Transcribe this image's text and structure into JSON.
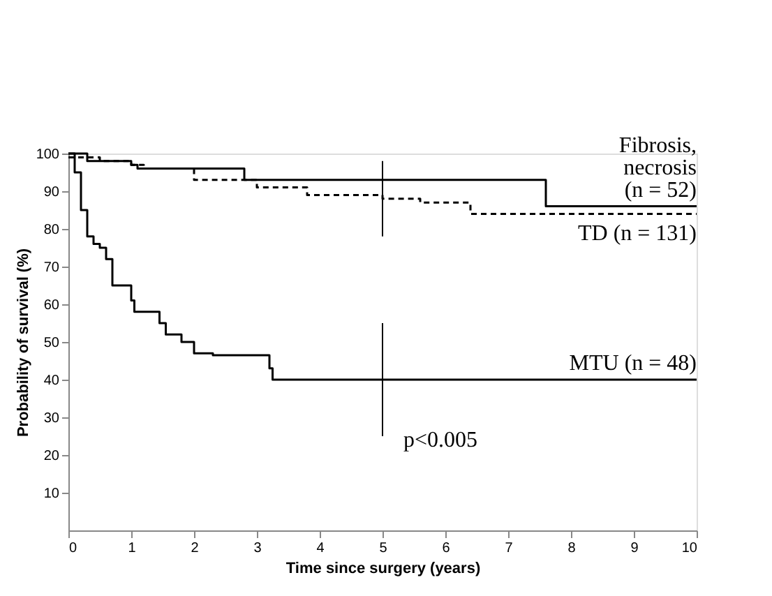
{
  "chart_data": {
    "type": "step",
    "xlabel": "Time since surgery (years)",
    "ylabel": "Probability of survival (%)",
    "xlim": [
      0,
      10
    ],
    "xticks": [
      0,
      1,
      2,
      3,
      4,
      5,
      6,
      7,
      8,
      9,
      10
    ],
    "ylim": [
      0,
      100
    ],
    "yticks": [
      10,
      20,
      30,
      40,
      50,
      60,
      70,
      80,
      90,
      100
    ],
    "grid": false,
    "legend": false,
    "series": [
      {
        "name": "Fibrosis,\nnecrosis\n(n = 52)",
        "color": "#000000",
        "line_style": "solid",
        "x": [
          0,
          0.3,
          1.0,
          1.1,
          2.8,
          5,
          7.6,
          10
        ],
        "values": [
          100,
          98,
          97,
          96,
          93,
          93,
          86,
          86
        ],
        "errors": [
          null,
          null,
          null,
          null,
          null,
          [
            80,
            98
          ],
          null,
          null
        ]
      },
      {
        "name": "TD (n = 131)",
        "color": "#000000",
        "line_style": "dashed",
        "x": [
          0,
          0.5,
          1.0,
          1.2,
          2.0,
          3.0,
          3.8,
          5,
          5.6,
          6.4,
          10
        ],
        "values": [
          99,
          98,
          97,
          96,
          93,
          91,
          89,
          88,
          87,
          84,
          84
        ],
        "errors": [
          null,
          null,
          null,
          null,
          null,
          null,
          null,
          [
            78,
            96
          ],
          null,
          null,
          null
        ]
      },
      {
        "name": "MTU (n = 48)",
        "color": "#000000",
        "line_style": "solid",
        "x": [
          0,
          0.1,
          0.2,
          0.3,
          0.4,
          0.5,
          0.6,
          0.7,
          1.0,
          1.05,
          1.45,
          1.55,
          1.8,
          2.0,
          2.3,
          3.2,
          3.25,
          5,
          10
        ],
        "values": [
          100,
          95,
          85,
          78,
          76,
          75,
          72,
          65,
          61,
          58,
          55,
          52,
          50,
          47,
          46.5,
          43,
          40,
          40,
          40
        ],
        "errors": [
          null,
          null,
          null,
          null,
          null,
          null,
          null,
          null,
          null,
          null,
          null,
          null,
          null,
          null,
          null,
          null,
          null,
          [
            25,
            55
          ],
          null
        ]
      }
    ],
    "annotations": [
      "p<0.005"
    ]
  }
}
